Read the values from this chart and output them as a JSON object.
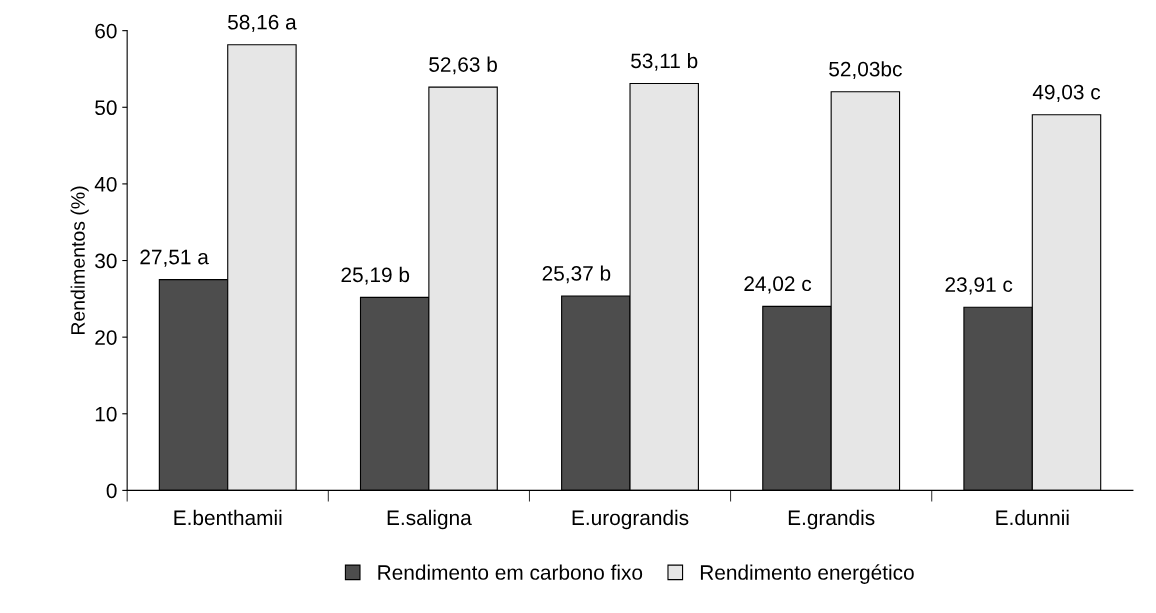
{
  "chart_data": {
    "type": "bar",
    "ylabel": "Rendimentos (%)",
    "categories": [
      "E.benthamii",
      "E.saligna",
      "E.urograndis",
      "E.grandis",
      "E.dunnii"
    ],
    "series": [
      {
        "name": "Rendimento em carbono fixo",
        "color": "#4d4d4d",
        "values": [
          27.51,
          25.19,
          25.37,
          24.02,
          23.91
        ],
        "value_labels": [
          "27,51 a",
          "25,19 b",
          "25,37 b",
          "24,02 c",
          "23,91 c"
        ]
      },
      {
        "name": "Rendimento energético",
        "color": "#e6e6e6",
        "values": [
          58.16,
          52.63,
          53.11,
          52.03,
          49.03
        ],
        "value_labels": [
          "58,16 a",
          "52,63 b",
          "53,11 b",
          "52,03bc",
          "49,03 c"
        ]
      }
    ],
    "ylim": [
      0,
      60
    ],
    "yticks": [
      0,
      10,
      20,
      30,
      40,
      50,
      60
    ],
    "grid": false,
    "legend": "bottom"
  }
}
